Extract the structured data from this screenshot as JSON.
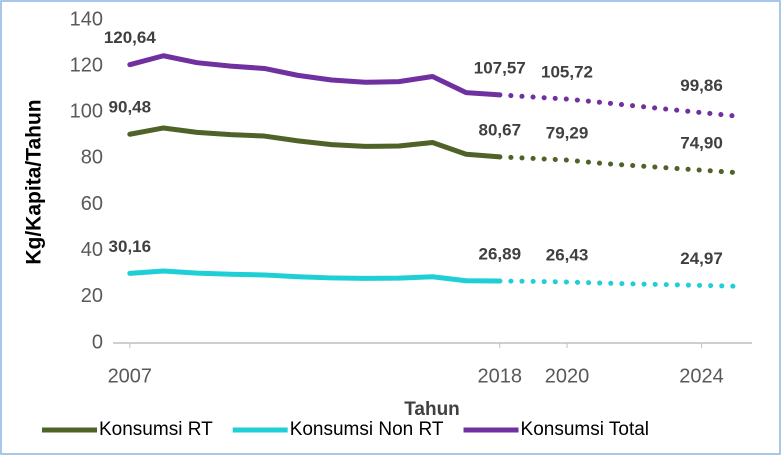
{
  "chart_data": {
    "type": "line",
    "y_label": "Kg/Kapita/Tahun",
    "x_label": "Tahun",
    "x": [
      2007,
      2008,
      2009,
      2010,
      2011,
      2012,
      2013,
      2014,
      2015,
      2016,
      2017,
      2018,
      2019,
      2020,
      2021,
      2022,
      2023,
      2024,
      2025
    ],
    "projection_start": 2018,
    "xlim": [
      2006.5,
      2025.5
    ],
    "xticks": [
      2007,
      2018,
      2020,
      2024
    ],
    "ylim": [
      0,
      140
    ],
    "yticks": [
      0,
      20,
      40,
      60,
      80,
      100,
      120,
      140
    ],
    "grid": false,
    "legend": "bottom",
    "series": [
      {
        "name": "Konsumsi RT",
        "color": "#4f6228",
        "values": [
          90.48,
          93.2,
          91.3,
          90.3,
          89.7,
          87.6,
          86,
          85.2,
          85.4,
          86.9,
          81.8,
          80.67,
          80,
          79.29,
          77.9,
          76.9,
          75.9,
          74.9,
          73.9
        ],
        "value_labels": [
          "90,48",
          null,
          null,
          null,
          null,
          null,
          null,
          null,
          null,
          null,
          null,
          "80,67",
          null,
          "79,29",
          null,
          null,
          null,
          "74,90",
          null
        ]
      },
      {
        "name": "Konsumsi Non RT",
        "color": "#1fcfd6",
        "values": [
          30.16,
          31.2,
          30.3,
          29.8,
          29.5,
          28.7,
          28.2,
          28,
          28.1,
          28.7,
          27,
          26.89,
          26.7,
          26.43,
          26,
          25.6,
          25.3,
          24.97,
          24.6
        ],
        "value_labels": [
          "30,16",
          null,
          null,
          null,
          null,
          null,
          null,
          null,
          null,
          null,
          null,
          "26,89",
          null,
          "26,43",
          null,
          null,
          null,
          "24,97",
          null
        ]
      },
      {
        "name": "Konsumsi Total",
        "color": "#7030a0",
        "values": [
          120.64,
          124.5,
          121.5,
          120,
          119,
          116,
          114,
          113,
          113.3,
          115.5,
          108.5,
          107.57,
          106.6,
          105.72,
          104.3,
          102.8,
          101.3,
          99.86,
          98.4
        ],
        "value_labels": [
          "120,64",
          null,
          null,
          null,
          null,
          null,
          null,
          null,
          null,
          null,
          null,
          "107,57",
          null,
          "105,72",
          null,
          null,
          null,
          "99,86",
          null
        ]
      }
    ]
  }
}
